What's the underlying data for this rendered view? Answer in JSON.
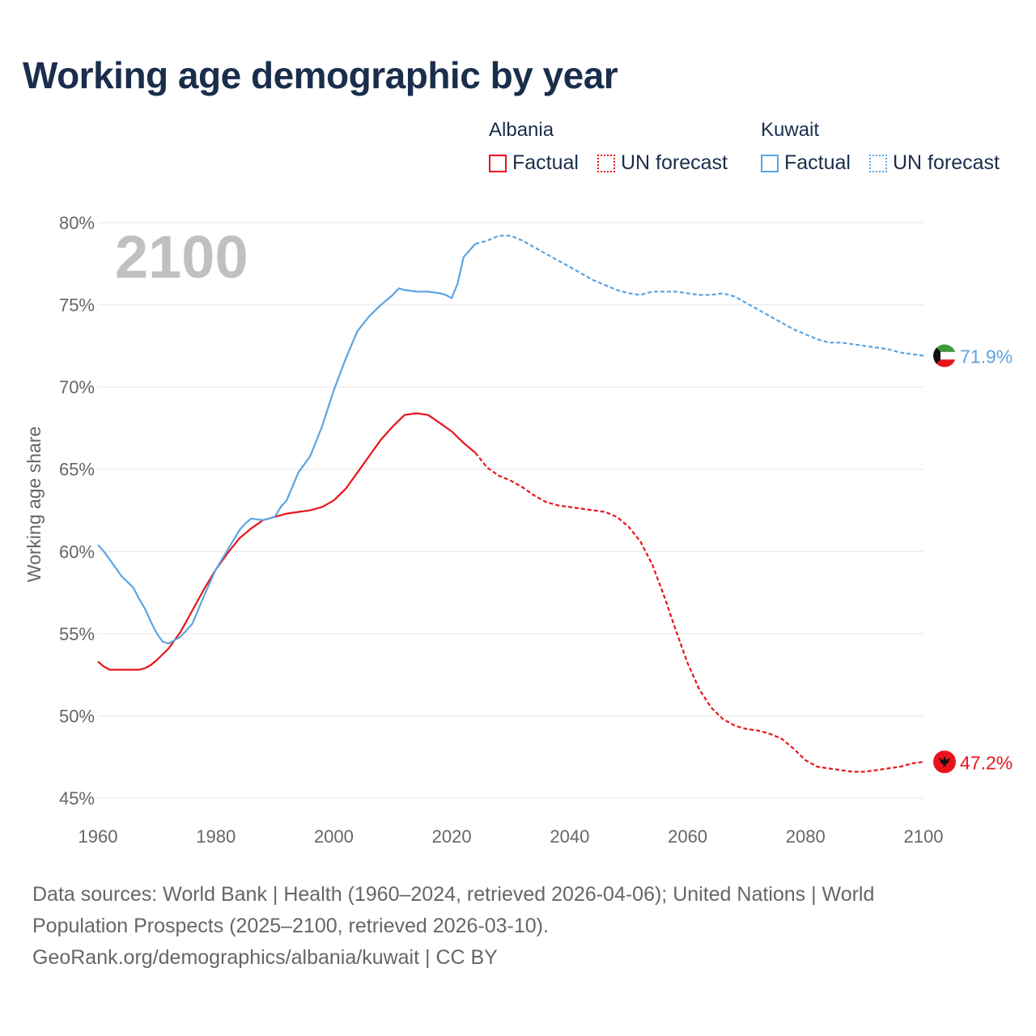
{
  "title": "Working age demographic by year",
  "legend": [
    {
      "group": "Albania",
      "items": [
        {
          "label": "Factual",
          "style": "solid"
        },
        {
          "label": "UN forecast",
          "style": "dotted"
        }
      ],
      "color": "#e8141c"
    },
    {
      "group": "Kuwait",
      "items": [
        {
          "label": "Factual",
          "style": "solid"
        },
        {
          "label": "UN forecast",
          "style": "dotted"
        }
      ],
      "color": "#5ba4e2"
    }
  ],
  "chart_data": {
    "type": "line",
    "title": "Working age demographic by year",
    "year_label": "2100",
    "xlabel": "",
    "ylabel": "Working age share",
    "xlim": [
      1960,
      2100
    ],
    "ylim": [
      45,
      80
    ],
    "x_ticks": [
      1960,
      1980,
      2000,
      2020,
      2040,
      2060,
      2080,
      2100
    ],
    "x_tick_labels": [
      "1960",
      "1980",
      "2000",
      "2020",
      "2040",
      "2060",
      "2080",
      "2100"
    ],
    "y_ticks": [
      45,
      50,
      55,
      60,
      65,
      70,
      75,
      80
    ],
    "y_tick_labels": [
      "45%",
      "50%",
      "55%",
      "60%",
      "65%",
      "70%",
      "75%",
      "80%"
    ],
    "grid": true,
    "factual_end_year": 2024,
    "series": [
      {
        "name": "Albania",
        "color": "#e8141c",
        "end_label": "47.2%",
        "flag": "albania-flag",
        "x": [
          1960,
          1961,
          1962,
          1964,
          1966,
          1967,
          1968,
          1969,
          1970,
          1972,
          1974,
          1976,
          1978,
          1980,
          1982,
          1984,
          1986,
          1988,
          1990,
          1992,
          1994,
          1996,
          1998,
          2000,
          2002,
          2004,
          2006,
          2008,
          2010,
          2012,
          2014,
          2016,
          2018,
          2020,
          2022,
          2024,
          2026,
          2028,
          2030,
          2032,
          2034,
          2036,
          2038,
          2040,
          2042,
          2044,
          2046,
          2048,
          2050,
          2052,
          2054,
          2056,
          2058,
          2060,
          2062,
          2064,
          2066,
          2068,
          2070,
          2072,
          2074,
          2076,
          2078,
          2080,
          2082,
          2084,
          2086,
          2088,
          2090,
          2092,
          2094,
          2096,
          2098,
          2100
        ],
        "values": [
          53.3,
          53.0,
          52.8,
          52.8,
          52.8,
          52.8,
          52.9,
          53.1,
          53.4,
          54.1,
          55.1,
          56.4,
          57.7,
          58.9,
          59.9,
          60.8,
          61.4,
          61.9,
          62.1,
          62.3,
          62.4,
          62.5,
          62.7,
          63.1,
          63.8,
          64.8,
          65.8,
          66.8,
          67.6,
          68.3,
          68.4,
          68.3,
          67.8,
          67.3,
          66.6,
          66.0,
          65.1,
          64.6,
          64.3,
          63.9,
          63.4,
          63.0,
          62.8,
          62.7,
          62.6,
          62.5,
          62.4,
          62.1,
          61.5,
          60.6,
          59.2,
          57.3,
          55.2,
          53.2,
          51.6,
          50.5,
          49.8,
          49.4,
          49.2,
          49.1,
          48.9,
          48.6,
          48.0,
          47.3,
          46.9,
          46.8,
          46.7,
          46.6,
          46.6,
          46.7,
          46.8,
          46.9,
          47.1,
          47.2
        ]
      },
      {
        "name": "Kuwait",
        "color": "#5ba4e2",
        "end_label": "71.9%",
        "flag": "kuwait-flag",
        "x": [
          1960,
          1961,
          1962,
          1964,
          1966,
          1967,
          1968,
          1969,
          1970,
          1971,
          1972,
          1974,
          1975,
          1976,
          1978,
          1980,
          1982,
          1984,
          1985,
          1986,
          1988,
          1990,
          1991,
          1992,
          1994,
          1996,
          1998,
          2000,
          2002,
          2004,
          2006,
          2008,
          2010,
          2011,
          2012,
          2014,
          2016,
          2018,
          2019,
          2020,
          2021,
          2022,
          2024,
          2026,
          2028,
          2030,
          2032,
          2034,
          2036,
          2038,
          2040,
          2042,
          2044,
          2046,
          2048,
          2050,
          2052,
          2054,
          2056,
          2058,
          2060,
          2062,
          2064,
          2066,
          2068,
          2070,
          2072,
          2074,
          2076,
          2078,
          2080,
          2082,
          2084,
          2086,
          2088,
          2090,
          2092,
          2094,
          2096,
          2098,
          2100
        ],
        "values": [
          60.4,
          60.0,
          59.5,
          58.5,
          57.8,
          57.1,
          56.5,
          55.7,
          55.0,
          54.5,
          54.4,
          54.8,
          55.2,
          55.6,
          57.3,
          58.9,
          60.1,
          61.3,
          61.7,
          62.0,
          61.9,
          62.1,
          62.7,
          63.1,
          64.8,
          65.8,
          67.6,
          69.8,
          71.7,
          73.4,
          74.3,
          75.0,
          75.6,
          76.0,
          75.9,
          75.8,
          75.8,
          75.7,
          75.6,
          75.4,
          76.3,
          77.9,
          78.7,
          78.9,
          79.2,
          79.2,
          78.9,
          78.5,
          78.1,
          77.7,
          77.3,
          76.9,
          76.5,
          76.2,
          75.9,
          75.7,
          75.6,
          75.8,
          75.8,
          75.8,
          75.7,
          75.6,
          75.6,
          75.7,
          75.5,
          75.1,
          74.7,
          74.3,
          73.9,
          73.5,
          73.2,
          72.9,
          72.7,
          72.7,
          72.6,
          72.5,
          72.4,
          72.3,
          72.1,
          72.0,
          71.9
        ]
      }
    ]
  },
  "footer": {
    "line1": "Data sources: World Bank | Health (1960–2024, retrieved 2026-04-06); United Nations | World",
    "line2": "Population Prospects (2025–2100, retrieved 2026-03-10).",
    "line3": "GeoRank.org/demographics/albania/kuwait | CC BY"
  },
  "colors": {
    "title": "#1a2e4c",
    "grid": "#e6e6e6",
    "axis_text": "#666666",
    "year_watermark": "#c0c0c0"
  }
}
